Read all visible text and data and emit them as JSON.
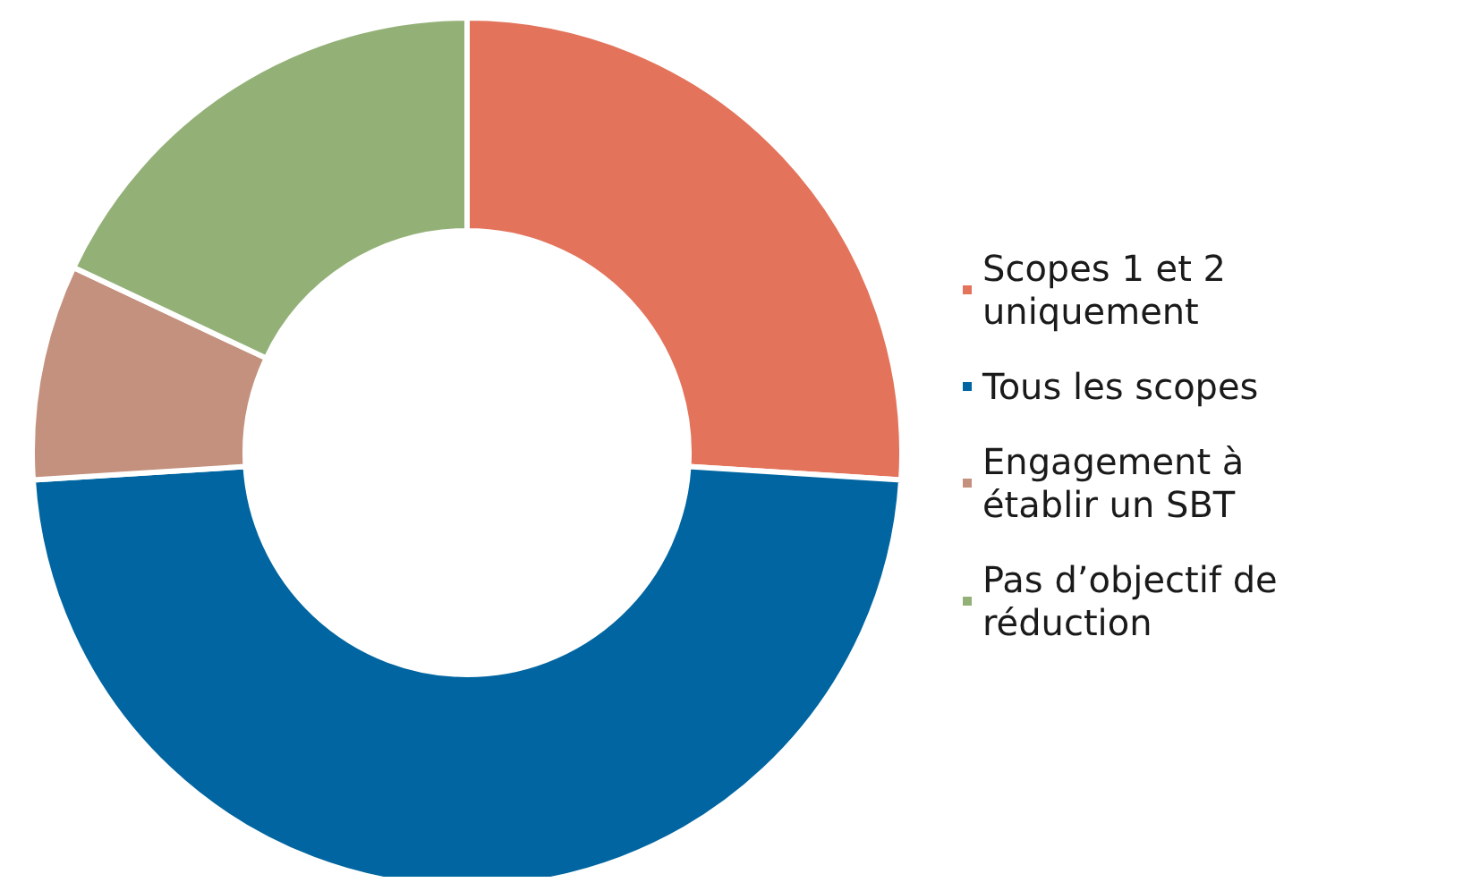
{
  "chart_data": {
    "type": "donut",
    "categories": [
      "Scopes 1 et 2 uniquement",
      "Tous les scopes",
      "Engagement à établir un SBT",
      "Pas d’objectif de réduction"
    ],
    "values": [
      26,
      48,
      8,
      18
    ],
    "colors": [
      "#e3735a",
      "#0065a0",
      "#c4917e",
      "#93b177"
    ],
    "legend": "right"
  }
}
